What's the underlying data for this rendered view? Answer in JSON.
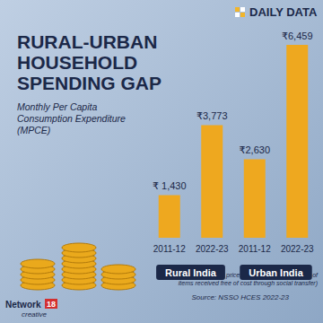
{
  "chart_data": {
    "type": "bar",
    "header": "DAILY DATA",
    "title": "RURAL-URBAN\nHOUSEHOLD\nSPENDING GAP",
    "subtitle": "Monthly Per Capita\nConsumption Expenditure\n(MPCE)",
    "categories": [
      "2011-12",
      "2022-23",
      "2011-12",
      "2022-23"
    ],
    "groups": [
      "Rural India",
      "Urban India"
    ],
    "values": [
      1430,
      3773,
      2630,
      6459
    ],
    "value_labels": [
      "₹ 1,430",
      "₹3,773",
      "₹2,630",
      "₹6,459"
    ],
    "color": "#eea81f",
    "ylim": [
      0,
      7000
    ],
    "yticks": [
      0,
      7000
    ],
    "grid": false,
    "tick_labels": "x",
    "data_labels": true,
    "note": "At current prices (without imputed values of\nitems received free of cost through social transfer)",
    "source": "Source: NSSO HCES 2022-23",
    "credit": [
      "Network",
      "18",
      "creative"
    ]
  }
}
